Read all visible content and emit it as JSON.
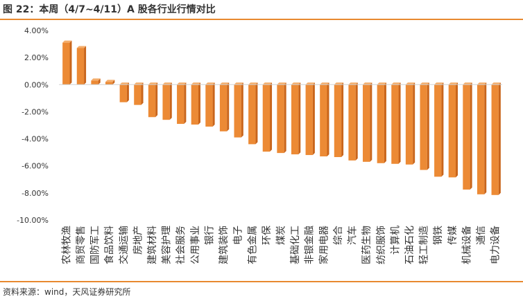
{
  "figure": {
    "title": "图 22：本周（4/7~4/11）A 股各行业行情对比",
    "source": "资料来源：wind，天风证券研究所"
  },
  "colors": {
    "bar": "#ec8a35",
    "bar_side": "#c9651b",
    "bar_top": "#f4ad6b",
    "rule": "#e8892f"
  },
  "chart_data": {
    "type": "bar",
    "title": "",
    "xlabel": "",
    "ylabel": "",
    "ylim": [
      -10,
      4
    ],
    "yticks": [
      4,
      2,
      0,
      -2,
      -4,
      -6,
      -8,
      -10
    ],
    "ytick_labels": [
      "4.00%",
      "2.00%",
      "0.00%",
      "-2.00%",
      "-4.00%",
      "-6.00%",
      "-8.00%",
      "-10.00%"
    ],
    "grid": false,
    "categories": [
      "农林牧渔",
      "商贸零售",
      "国防军工",
      "食品饮料",
      "交通运输",
      "房地产",
      "建筑材料",
      "美容护理",
      "社会服务",
      "公用事业",
      "银行",
      "建筑装饰",
      "电子",
      "有色金属",
      "环保",
      "煤炭",
      "基础化工",
      "非银金融",
      "家用电器",
      "综合",
      "汽车",
      "医药生物",
      "纺织服饰",
      "计算机",
      "石油石化",
      "轻工制造",
      "钢铁",
      "传媒",
      "机械设备",
      "通信",
      "电力设备"
    ],
    "values": [
      3.1,
      2.7,
      0.3,
      0.2,
      -1.3,
      -1.5,
      -2.4,
      -2.6,
      -2.9,
      -2.95,
      -3.1,
      -3.45,
      -3.9,
      -4.4,
      -4.95,
      -5.05,
      -5.15,
      -5.2,
      -5.3,
      -5.35,
      -5.6,
      -5.7,
      -5.8,
      -5.85,
      -5.9,
      -6.3,
      -6.8,
      -6.85,
      -7.75,
      -8.1,
      -8.15
    ]
  }
}
